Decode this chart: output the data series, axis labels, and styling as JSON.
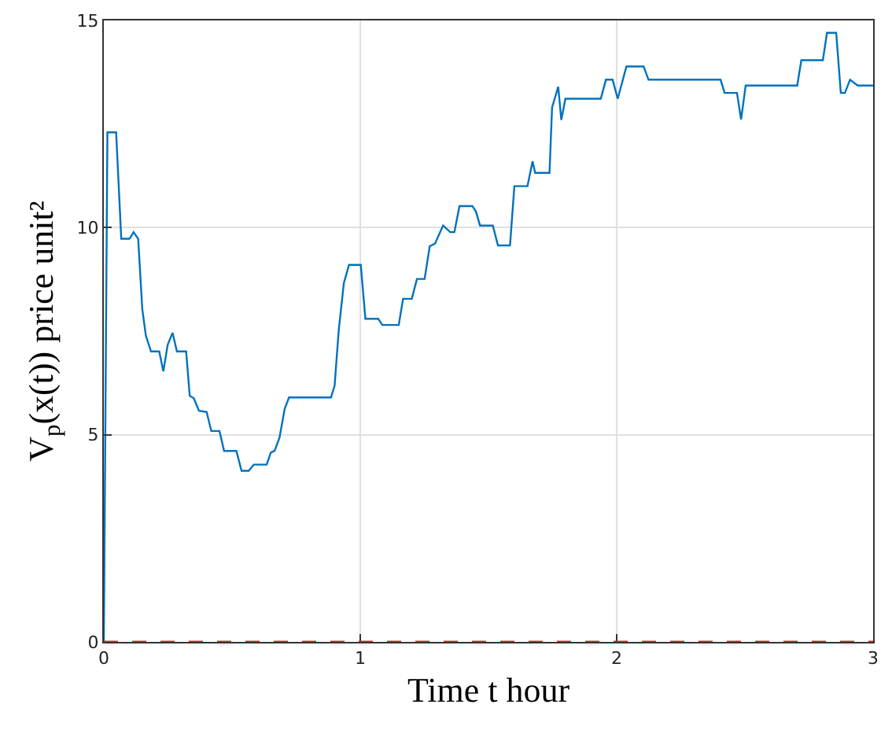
{
  "chart_data": {
    "type": "line",
    "xlabel": "Time t hour",
    "ylabel": "V$_{p}$(x(t)) price unit²",
    "x": [
      0,
      0.014,
      0.048,
      0.068,
      0.1,
      0.116,
      0.134,
      0.15,
      0.164,
      0.184,
      0.216,
      0.232,
      0.249,
      0.268,
      0.285,
      0.321,
      0.335,
      0.351,
      0.371,
      0.401,
      0.419,
      0.451,
      0.469,
      0.517,
      0.537,
      0.565,
      0.585,
      0.635,
      0.651,
      0.666,
      0.685,
      0.705,
      0.722,
      0.886,
      0.9,
      0.916,
      0.936,
      0.956,
      1.002,
      1.02,
      1.07,
      1.086,
      1.15,
      1.167,
      1.201,
      1.221,
      1.251,
      1.271,
      1.291,
      1.323,
      1.351,
      1.367,
      1.387,
      1.437,
      1.451,
      1.467,
      1.517,
      1.537,
      1.584,
      1.601,
      1.652,
      1.672,
      1.682,
      1.738,
      1.748,
      1.772,
      1.784,
      1.8,
      1.888,
      1.938,
      1.958,
      1.984,
      2.004,
      2.038,
      2.105,
      2.124,
      2.405,
      2.421,
      2.469,
      2.485,
      2.503,
      2.704,
      2.72,
      2.804,
      2.82,
      2.856,
      2.874,
      2.89,
      2.91,
      2.94,
      3.0
    ],
    "series": [
      {
        "color": "#0072bd",
        "values": [
          0,
          12.3,
          12.3,
          9.73,
          9.73,
          9.89,
          9.73,
          8.03,
          7.39,
          7.01,
          7.01,
          6.53,
          7.17,
          7.46,
          7.01,
          7.01,
          5.94,
          5.88,
          5.58,
          5.55,
          5.09,
          5.09,
          4.61,
          4.61,
          4.13,
          4.13,
          4.28,
          4.28,
          4.57,
          4.61,
          4.93,
          5.62,
          5.9,
          5.9,
          6.19,
          7.52,
          8.66,
          9.1,
          9.1,
          7.8,
          7.8,
          7.65,
          7.65,
          8.28,
          8.28,
          8.76,
          8.76,
          9.55,
          9.61,
          10.05,
          9.89,
          9.89,
          10.52,
          10.52,
          10.39,
          10.05,
          10.05,
          9.57,
          9.57,
          11.0,
          11.0,
          11.6,
          11.32,
          11.32,
          12.9,
          13.4,
          12.6,
          13.11,
          13.11,
          13.11,
          13.57,
          13.57,
          13.11,
          13.89,
          13.89,
          13.57,
          13.57,
          13.25,
          13.25,
          12.61,
          13.43,
          13.43,
          14.04,
          14.04,
          14.7,
          14.7,
          13.25,
          13.25,
          13.57,
          13.43,
          13.43
        ]
      }
    ],
    "xlim": [
      0,
      3
    ],
    "xticks": [
      0,
      1,
      2,
      3
    ],
    "ylim": [
      0,
      15
    ],
    "yticks": [
      0,
      5,
      10,
      15
    ],
    "grid": true,
    "marker": "none",
    "line_style": "solid",
    "ref_lines": [
      {
        "axis": "y",
        "value": 0,
        "color": "#d62728",
        "line_style": "dashed"
      }
    ]
  }
}
